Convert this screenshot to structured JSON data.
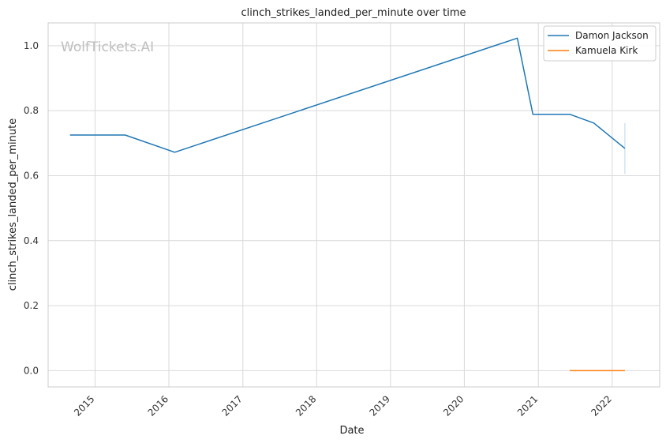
{
  "chart_data": {
    "type": "line",
    "title": "clinch_strikes_landed_per_minute over time",
    "xlabel": "Date",
    "ylabel": "clinch_strikes_landed_per_minute",
    "watermark": "WolfTickets.AI",
    "x_tick_labels": [
      "2015",
      "2016",
      "2017",
      "2018",
      "2019",
      "2020",
      "2021",
      "2022"
    ],
    "y_tick_labels": [
      "0.0",
      "0.2",
      "0.4",
      "0.6",
      "0.8",
      "1.0"
    ],
    "y_ticks": [
      0.0,
      0.2,
      0.4,
      0.6,
      0.8,
      1.0
    ],
    "ylim": [
      -0.05,
      1.07
    ],
    "xlim": [
      "2014-05-14",
      "2022-08-24"
    ],
    "grid": true,
    "legend_position": "top-right",
    "series": [
      {
        "name": "Damon Jackson",
        "color": "#1f77b4",
        "x": [
          "2014-08-30",
          "2015-05-30",
          "2016-01-30",
          "2020-09-19",
          "2020-12-05",
          "2021-06-05",
          "2021-10-02",
          "2022-03-05"
        ],
        "y": [
          0.725,
          0.725,
          0.672,
          1.023,
          0.789,
          0.789,
          0.762,
          0.684
        ],
        "error_band": {
          "x": "2022-03-05",
          "low": 0.605,
          "high": 0.762
        }
      },
      {
        "name": "Kamuela Kirk",
        "color": "#ff7f0e",
        "x": [
          "2021-06-05",
          "2022-03-05"
        ],
        "y": [
          0.0,
          0.0
        ]
      }
    ]
  }
}
